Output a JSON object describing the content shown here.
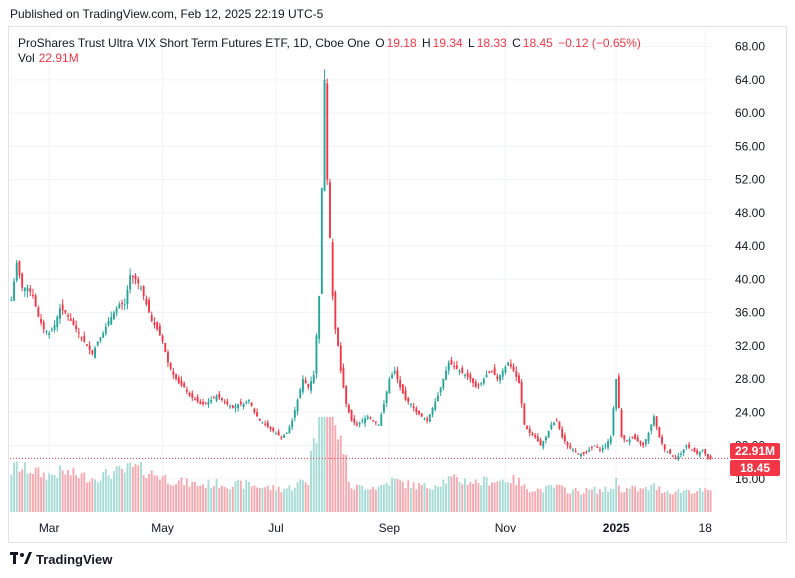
{
  "header": {
    "published": "Published on TradingView.com, Feb 12, 2025 22:19 UTC-5"
  },
  "legend": {
    "title": "ProShares Trust Ultra VIX Short Term Futures ETF, 1D, Cboe One",
    "o_label": "O",
    "o_value": "19.18",
    "h_label": "H",
    "h_value": "19.34",
    "l_label": "L",
    "l_value": "18.33",
    "c_label": "C",
    "c_value": "18.45",
    "change": "−0.12 (−0.65%)",
    "vol_label": "Vol",
    "vol_value": "22.91M"
  },
  "price_axis": {
    "vol_badge": "22.91M",
    "price_badge": "18.45"
  },
  "footer": {
    "brand": "TradingView"
  },
  "colors": {
    "up": "#26a69a",
    "down": "#f23645",
    "vol_up": "#a7dcd6",
    "vol_down": "#f7a9b0"
  },
  "chart_data": {
    "type": "candlestick",
    "ylim": [
      12,
      70
    ],
    "yticks": [
      16,
      20,
      24,
      28,
      32,
      36,
      40,
      44,
      48,
      52,
      56,
      60,
      64,
      68
    ],
    "ytick_labels": [
      "16.00",
      "20.00",
      "24.00",
      "28.00",
      "32.00",
      "36.00",
      "40.00",
      "44.00",
      "48.00",
      "52.00",
      "56.00",
      "60.00",
      "64.00",
      "68.00"
    ],
    "x_labels": [
      "Mar",
      "May",
      "Jul",
      "Sep",
      "Nov",
      "2025",
      "18"
    ],
    "x_label_index": [
      14,
      56,
      98,
      140,
      183,
      224,
      257
    ],
    "last_close": 18.45,
    "close_path": [
      [
        0,
        37.5
      ],
      [
        2,
        42
      ],
      [
        4,
        39
      ],
      [
        6,
        39
      ],
      [
        8,
        38
      ],
      [
        10,
        35.5
      ],
      [
        12,
        34
      ],
      [
        14,
        33.5
      ],
      [
        16,
        34.5
      ],
      [
        18,
        36.5
      ],
      [
        20,
        36
      ],
      [
        22,
        35
      ],
      [
        24,
        34
      ],
      [
        26,
        33
      ],
      [
        28,
        32
      ],
      [
        30,
        31
      ],
      [
        32,
        32.5
      ],
      [
        34,
        33.5
      ],
      [
        36,
        35
      ],
      [
        38,
        36
      ],
      [
        40,
        37
      ],
      [
        42,
        37
      ],
      [
        44,
        40.5
      ],
      [
        46,
        40
      ],
      [
        48,
        39
      ],
      [
        50,
        37
      ],
      [
        52,
        35
      ],
      [
        54,
        34
      ],
      [
        56,
        32.5
      ],
      [
        58,
        30
      ],
      [
        60,
        28.5
      ],
      [
        62,
        27.5
      ],
      [
        64,
        27
      ],
      [
        66,
        26
      ],
      [
        68,
        25.5
      ],
      [
        70,
        25
      ],
      [
        72,
        25
      ],
      [
        74,
        25.5
      ],
      [
        76,
        26
      ],
      [
        78,
        25.5
      ],
      [
        80,
        25
      ],
      [
        82,
        24.5
      ],
      [
        84,
        25
      ],
      [
        86,
        25
      ],
      [
        88,
        25.5
      ],
      [
        90,
        24
      ],
      [
        92,
        23
      ],
      [
        94,
        22.5
      ],
      [
        96,
        22
      ],
      [
        98,
        21.5
      ],
      [
        100,
        21
      ],
      [
        102,
        21.5
      ],
      [
        104,
        23
      ],
      [
        106,
        25.5
      ],
      [
        108,
        28
      ],
      [
        110,
        27
      ],
      [
        112,
        28.5
      ],
      [
        114,
        38
      ],
      [
        116,
        64
      ],
      [
        117,
        52
      ],
      [
        118,
        45
      ],
      [
        119,
        38
      ],
      [
        120,
        34
      ],
      [
        121,
        32
      ],
      [
        122,
        29
      ],
      [
        124,
        25
      ],
      [
        126,
        23
      ],
      [
        128,
        22.5
      ],
      [
        130,
        23
      ],
      [
        132,
        23.5
      ],
      [
        134,
        23
      ],
      [
        136,
        22.5
      ],
      [
        138,
        25
      ],
      [
        140,
        28
      ],
      [
        142,
        29
      ],
      [
        144,
        27
      ],
      [
        146,
        25.5
      ],
      [
        148,
        25
      ],
      [
        150,
        24
      ],
      [
        152,
        23.5
      ],
      [
        154,
        23
      ],
      [
        156,
        24.5
      ],
      [
        158,
        26
      ],
      [
        160,
        28
      ],
      [
        162,
        30
      ],
      [
        164,
        29.5
      ],
      [
        166,
        29
      ],
      [
        168,
        28.5
      ],
      [
        170,
        28
      ],
      [
        172,
        27
      ],
      [
        174,
        27.5
      ],
      [
        176,
        28.5
      ],
      [
        178,
        29
      ],
      [
        180,
        28
      ],
      [
        182,
        29
      ],
      [
        184,
        30
      ],
      [
        186,
        29
      ],
      [
        188,
        27.5
      ],
      [
        190,
        22.5
      ],
      [
        192,
        21.5
      ],
      [
        194,
        21
      ],
      [
        196,
        20
      ],
      [
        198,
        21
      ],
      [
        200,
        22.5
      ],
      [
        202,
        23
      ],
      [
        204,
        21
      ],
      [
        206,
        20
      ],
      [
        208,
        19.5
      ],
      [
        210,
        19
      ],
      [
        212,
        19
      ],
      [
        214,
        19.5
      ],
      [
        216,
        20
      ],
      [
        218,
        19.5
      ],
      [
        220,
        20
      ],
      [
        222,
        21
      ],
      [
        224,
        28
      ],
      [
        226,
        21
      ],
      [
        228,
        20.5
      ],
      [
        230,
        21
      ],
      [
        232,
        20.5
      ],
      [
        234,
        20
      ],
      [
        236,
        21.5
      ],
      [
        238,
        23.5
      ],
      [
        240,
        21
      ],
      [
        242,
        19.5
      ],
      [
        244,
        19
      ],
      [
        246,
        18.5
      ],
      [
        248,
        19
      ],
      [
        250,
        20
      ],
      [
        252,
        19.5
      ],
      [
        254,
        19
      ],
      [
        256,
        19.5
      ],
      [
        258,
        18.45
      ]
    ],
    "n_days": 260
  }
}
